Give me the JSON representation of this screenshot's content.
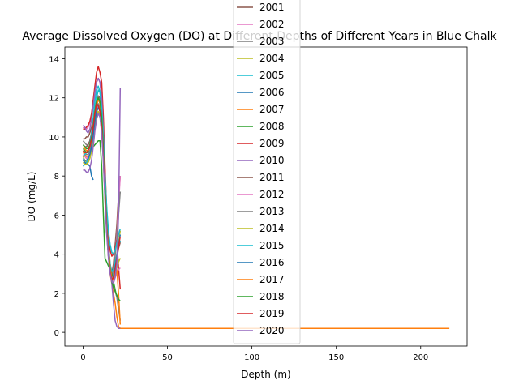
{
  "chart_data": {
    "type": "line",
    "title": "Average Dissolved Oxygen (DO) at Different Depths of Different Years in Blue Chalk",
    "xlabel": "Depth (m)",
    "ylabel": "DO (mg/L)",
    "xlim": [
      -10.8,
      227.5
    ],
    "ylim": [
      -0.7,
      14.6
    ],
    "xticks": [
      0,
      50,
      100,
      150,
      200
    ],
    "yticks": [
      0,
      2,
      4,
      6,
      8,
      10,
      12,
      14
    ],
    "grid": false,
    "legend_position": "upper-center",
    "series": [
      {
        "name": "2001",
        "color": "#8c564b",
        "x": [
          0,
          1,
          2,
          3,
          4,
          5,
          6,
          7,
          8,
          9,
          10,
          11,
          12,
          13,
          14,
          15,
          16,
          17,
          18,
          19,
          20,
          21,
          22
        ],
        "y": [
          9.9,
          9.9,
          10.0,
          10.0,
          10.2,
          10.5,
          10.9,
          11.3,
          11.8,
          12.1,
          12.0,
          11.6,
          10.0,
          8.0,
          6.0,
          4.5,
          3.5,
          3.0,
          3.5,
          4.5,
          5.5,
          7.0,
          8.0
        ]
      },
      {
        "name": "2002",
        "color": "#e377c2",
        "x": [
          0,
          1,
          2,
          3,
          4,
          5,
          6,
          7,
          8,
          9,
          10,
          11,
          12,
          13,
          14,
          15,
          16,
          17,
          18,
          19,
          20,
          21,
          22
        ],
        "y": [
          10.5,
          10.4,
          10.4,
          10.5,
          10.7,
          11.0,
          11.6,
          12.2,
          12.8,
          13.0,
          12.8,
          12.0,
          10.0,
          7.5,
          5.5,
          4.0,
          3.2,
          2.8,
          3.2,
          4.0,
          5.0,
          6.5,
          8.0
        ]
      },
      {
        "name": "2003",
        "color": "#7f7f7f",
        "x": [
          0,
          1,
          2,
          3,
          4,
          5,
          6,
          7,
          8,
          9,
          10,
          11,
          12,
          13,
          14,
          15,
          16,
          17,
          18,
          19,
          20,
          21,
          22
        ],
        "y": [
          9.8,
          9.7,
          9.6,
          9.6,
          9.8,
          10.2,
          10.8,
          11.4,
          11.9,
          12.1,
          11.8,
          11.0,
          9.5,
          7.5,
          5.5,
          4.2,
          3.3,
          2.9,
          3.2,
          3.9,
          4.8,
          6.0,
          7.2
        ]
      },
      {
        "name": "2004",
        "color": "#bcbd22",
        "x": [
          0,
          1,
          2,
          3,
          4,
          5,
          6,
          7,
          8,
          9,
          10,
          11,
          12,
          13,
          14,
          15,
          16,
          17,
          18,
          19,
          20,
          21,
          22
        ],
        "y": [
          9.0,
          8.8,
          8.7,
          8.7,
          8.9,
          9.3,
          9.9,
          10.6,
          11.2,
          11.6,
          11.5,
          10.8,
          9.3,
          7.3,
          5.4,
          4.0,
          3.1,
          2.6,
          2.8,
          3.3,
          3.9,
          4.6,
          5.2
        ]
      },
      {
        "name": "2005",
        "color": "#17becf",
        "x": [
          0,
          1,
          2,
          3,
          4,
          5,
          6,
          7,
          8,
          9,
          10,
          11,
          12,
          13,
          14,
          15,
          16,
          17,
          18,
          19,
          20,
          21,
          22
        ],
        "y": [
          8.5,
          8.6,
          8.7,
          8.8,
          9.0,
          9.6,
          10.4,
          11.3,
          12.0,
          12.4,
          12.3,
          11.5,
          9.8,
          7.6,
          5.6,
          4.3,
          3.5,
          3.1,
          3.2,
          3.6,
          4.0,
          4.4,
          4.7
        ]
      },
      {
        "name": "2006",
        "color": "#1f77b4",
        "x": [
          0,
          1,
          2,
          3,
          4,
          5,
          6
        ],
        "y": [
          8.8,
          8.7,
          8.6,
          8.6,
          8.5,
          8.0,
          7.8
        ]
      },
      {
        "name": "2007",
        "color": "#ff7f0e",
        "x": [
          0,
          1,
          2,
          3,
          4,
          5,
          6,
          7,
          8,
          9,
          10,
          11,
          12,
          13,
          14,
          15,
          16,
          17,
          18,
          19,
          20,
          21,
          22,
          23,
          24,
          26,
          30,
          40,
          50,
          60,
          70,
          80,
          90,
          100,
          110,
          120,
          130,
          140,
          150,
          160,
          170,
          180,
          190,
          200,
          210,
          217
        ],
        "y": [
          9.2,
          9.1,
          9.0,
          9.0,
          9.2,
          9.6,
          10.3,
          11.0,
          11.6,
          11.9,
          11.8,
          11.0,
          9.2,
          7.2,
          5.4,
          4.0,
          3.0,
          2.5,
          2.0,
          1.5,
          0.8,
          0.3,
          0.2,
          0.2,
          0.2,
          0.2,
          0.2,
          0.2,
          0.2,
          0.2,
          0.2,
          0.2,
          0.2,
          0.2,
          0.2,
          0.2,
          0.2,
          0.2,
          0.2,
          0.2,
          0.2,
          0.2,
          0.2,
          0.2,
          0.2,
          0.2
        ]
      },
      {
        "name": "2008",
        "color": "#2ca02c",
        "x": [
          0,
          1,
          2,
          3,
          4,
          5,
          6,
          7,
          8,
          9,
          10,
          11,
          12,
          13,
          14,
          15,
          16,
          17,
          18,
          19,
          20,
          21
        ],
        "y": [
          9.4,
          9.3,
          9.2,
          9.2,
          9.3,
          9.4,
          9.5,
          9.6,
          9.7,
          9.8,
          9.8,
          8.5,
          6.0,
          3.8,
          3.6,
          3.4,
          3.2,
          3.0,
          2.6,
          2.2,
          1.8,
          1.5
        ]
      },
      {
        "name": "2009",
        "color": "#d62728",
        "x": [
          0,
          1,
          2,
          3,
          4,
          5,
          6,
          7,
          8,
          9,
          10,
          11,
          12,
          13,
          14,
          15,
          16,
          17,
          18,
          19,
          20,
          21,
          22
        ],
        "y": [
          10.4,
          10.4,
          10.5,
          10.6,
          10.8,
          11.2,
          11.9,
          12.6,
          13.3,
          13.6,
          13.3,
          12.8,
          11.0,
          8.5,
          6.2,
          4.9,
          4.2,
          3.9,
          4.0,
          4.3,
          4.7,
          3.3,
          2.2
        ]
      },
      {
        "name": "2010",
        "color": "#9467bd",
        "x": [
          0,
          1,
          2,
          3,
          4,
          5,
          6,
          7,
          8,
          9,
          10,
          11,
          12,
          13,
          14,
          15,
          16,
          17,
          18,
          19,
          20,
          21,
          22
        ],
        "y": [
          10.6,
          10.5,
          10.3,
          10.2,
          10.4,
          10.9,
          11.6,
          12.3,
          12.8,
          13.0,
          12.8,
          12.0,
          10.3,
          8.0,
          5.8,
          4.3,
          3.2,
          2.5,
          1.5,
          0.6,
          0.3,
          0.2,
          0.2
        ]
      },
      {
        "name": "2011",
        "color": "#8c564b",
        "x": [
          0,
          1,
          2,
          3,
          4,
          5,
          6,
          7,
          8,
          9,
          10,
          11,
          12,
          13,
          14,
          15,
          16,
          17,
          18,
          19,
          20,
          21,
          22
        ],
        "y": [
          9.6,
          9.5,
          9.5,
          9.6,
          9.8,
          10.2,
          10.8,
          11.4,
          11.8,
          12.0,
          11.7,
          10.9,
          9.3,
          7.2,
          5.4,
          4.1,
          3.3,
          2.8,
          2.9,
          3.3,
          3.8,
          4.3,
          4.6
        ]
      },
      {
        "name": "2012",
        "color": "#e377c2",
        "x": [
          0,
          1,
          2,
          3,
          4,
          5,
          6,
          7,
          8,
          9,
          10,
          11,
          12,
          13,
          14,
          15,
          16,
          17,
          18,
          19,
          20,
          21,
          22
        ],
        "y": [
          9.1,
          9.0,
          8.9,
          9.0,
          9.2,
          9.6,
          10.2,
          10.9,
          11.4,
          11.6,
          11.4,
          10.6,
          9.0,
          7.0,
          5.2,
          3.9,
          3.1,
          2.7,
          2.6,
          2.8,
          3.0,
          3.2,
          3.3
        ]
      },
      {
        "name": "2013",
        "color": "#7f7f7f",
        "x": [
          0,
          1,
          2,
          3,
          4,
          5,
          6,
          7,
          8,
          9,
          10,
          11,
          12,
          13,
          14,
          15,
          16,
          17,
          18,
          19,
          20,
          21,
          22
        ],
        "y": [
          9.3,
          9.2,
          9.1,
          9.1,
          9.3,
          9.7,
          10.3,
          11.0,
          11.5,
          11.7,
          11.5,
          10.7,
          9.1,
          7.1,
          5.3,
          4.0,
          3.2,
          2.7,
          2.4,
          2.1,
          1.8,
          1.2,
          0.6
        ]
      },
      {
        "name": "2014",
        "color": "#bcbd22",
        "x": [
          0,
          1,
          2,
          3,
          4,
          5,
          6,
          7,
          8,
          9,
          10,
          11,
          12,
          13,
          14,
          15,
          16,
          17,
          18,
          19,
          20,
          21,
          22
        ],
        "y": [
          8.7,
          8.6,
          8.6,
          8.7,
          8.9,
          9.3,
          9.9,
          10.6,
          11.1,
          11.3,
          11.1,
          10.3,
          8.8,
          6.9,
          5.1,
          3.9,
          3.1,
          2.7,
          2.7,
          3.0,
          3.3,
          3.6,
          3.8
        ]
      },
      {
        "name": "2015",
        "color": "#17becf",
        "x": [
          0,
          1,
          2,
          3,
          4,
          5,
          6,
          7,
          8,
          9,
          10,
          11,
          12,
          13,
          14,
          15,
          16,
          17,
          18,
          19,
          20,
          21,
          22
        ],
        "y": [
          9.0,
          9.1,
          9.2,
          9.3,
          9.6,
          10.2,
          11.0,
          11.8,
          12.4,
          12.6,
          12.3,
          11.5,
          9.9,
          8.0,
          6.4,
          5.2,
          4.5,
          4.1,
          4.0,
          4.2,
          4.6,
          5.0,
          5.3
        ]
      },
      {
        "name": "2016",
        "color": "#1f77b4",
        "x": [
          0,
          1,
          2,
          3,
          4,
          5,
          6,
          7,
          8,
          9,
          10,
          11,
          12,
          13,
          14,
          15,
          16,
          17,
          18,
          19,
          20,
          21,
          22
        ],
        "y": [
          8.9,
          8.8,
          8.8,
          8.9,
          9.1,
          9.5,
          10.1,
          10.8,
          11.3,
          11.5,
          11.3,
          10.5,
          9.0,
          7.0,
          5.2,
          4.0,
          3.2,
          2.8,
          2.9,
          3.3,
          3.9,
          4.5,
          5.0
        ]
      },
      {
        "name": "2017",
        "color": "#ff7f0e",
        "x": [
          0,
          1,
          2,
          3,
          4,
          5,
          6,
          7,
          8,
          9,
          10,
          11,
          12,
          13,
          14,
          15,
          16,
          17,
          18,
          19,
          20,
          21,
          22
        ],
        "y": [
          9.5,
          9.4,
          9.3,
          9.3,
          9.5,
          9.9,
          10.6,
          11.3,
          11.8,
          12.0,
          11.7,
          10.9,
          9.3,
          7.3,
          5.5,
          4.2,
          3.3,
          2.8,
          2.7,
          2.9,
          3.2,
          2.0,
          0.4
        ]
      },
      {
        "name": "2018",
        "color": "#2ca02c",
        "x": [
          0,
          1,
          2,
          3,
          4,
          5,
          6,
          7,
          8,
          9,
          10,
          11,
          12,
          13,
          14,
          15,
          16,
          17,
          18,
          19,
          20,
          21,
          22
        ],
        "y": [
          9.6,
          9.5,
          9.4,
          9.4,
          9.6,
          10.0,
          10.6,
          11.3,
          11.8,
          12.0,
          11.8,
          11.0,
          9.4,
          7.3,
          5.4,
          4.0,
          3.1,
          2.6,
          2.3,
          2.1,
          1.9,
          1.7,
          1.6
        ]
      },
      {
        "name": "2019",
        "color": "#d62728",
        "x": [
          0,
          1,
          2,
          3,
          4,
          5,
          6,
          7,
          8,
          9,
          10,
          11,
          12,
          13,
          14,
          15,
          16,
          17,
          18,
          19,
          20,
          21,
          22
        ],
        "y": [
          9.3,
          9.2,
          9.2,
          9.3,
          9.5,
          9.9,
          10.5,
          11.2,
          11.7,
          11.6,
          11.3,
          10.5,
          9.0,
          7.0,
          5.2,
          3.9,
          3.1,
          2.7,
          2.8,
          3.2,
          3.8,
          4.4,
          4.9
        ]
      },
      {
        "name": "2020",
        "color": "#9467bd",
        "x": [
          0,
          1,
          2,
          3,
          4,
          5,
          6,
          7,
          8,
          9,
          10,
          11,
          12,
          13,
          14,
          15,
          16,
          17,
          18,
          19,
          20,
          21,
          22
        ],
        "y": [
          8.3,
          8.3,
          8.2,
          8.2,
          8.4,
          8.8,
          9.5,
          10.3,
          10.9,
          11.2,
          11.0,
          10.2,
          8.7,
          6.7,
          5.0,
          3.8,
          3.0,
          2.6,
          2.5,
          2.8,
          3.5,
          6.0,
          12.5
        ]
      }
    ]
  }
}
